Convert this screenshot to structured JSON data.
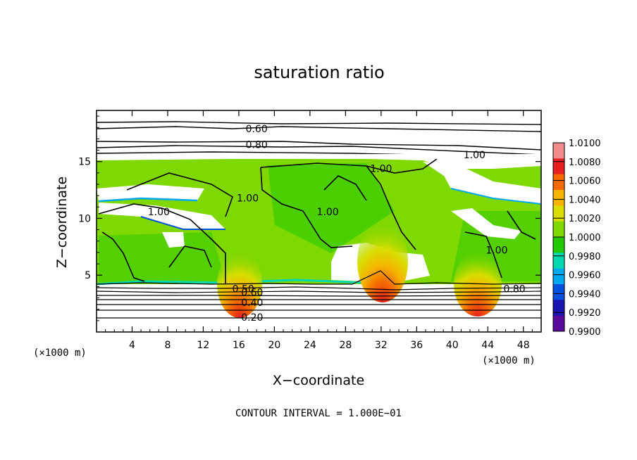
{
  "chart_data": {
    "type": "heatmap",
    "title": "saturation ratio",
    "xlabel": "X−coordinate",
    "ylabel": "Z−coordinate",
    "x_unit_left": "(×1000 m)",
    "x_unit_right": "(×1000 m)",
    "xlim": [
      0,
      50
    ],
    "ylim": [
      0,
      19.5
    ],
    "x_ticks": [
      4,
      8,
      12,
      16,
      20,
      24,
      28,
      32,
      36,
      40,
      44,
      48
    ],
    "y_ticks": [
      5,
      10,
      15
    ],
    "footnote": "CONTOUR INTERVAL = 1.000E−01",
    "colorbar": {
      "labels": [
        "1.0100",
        "1.0080",
        "1.0060",
        "1.0040",
        "1.0020",
        "1.0000",
        "0.9980",
        "0.9960",
        "0.9940",
        "0.9920",
        "0.9900"
      ],
      "colors": [
        "#f08c8c",
        "#e62020",
        "#f56a00",
        "#f5b400",
        "#d9dd00",
        "#7fd800",
        "#22c800",
        "#00d8b0",
        "#00a8f0",
        "#0050e0",
        "#1a14b0",
        "#5a0a9a"
      ]
    },
    "contour_labels": [
      {
        "text": "0.60",
        "x": 18.0,
        "z": 17.9
      },
      {
        "text": "0.80",
        "x": 18.0,
        "z": 16.5
      },
      {
        "text": "1.00",
        "x": 42.5,
        "z": 15.6
      },
      {
        "text": "1.00",
        "x": 32.0,
        "z": 14.4
      },
      {
        "text": "1.00",
        "x": 17.0,
        "z": 11.8
      },
      {
        "text": "1.00",
        "x": 26.0,
        "z": 10.6
      },
      {
        "text": "1.00",
        "x": 7.0,
        "z": 10.6
      },
      {
        "text": "1.00",
        "x": 45.0,
        "z": 7.2
      },
      {
        "text": "0.80",
        "x": 47.0,
        "z": 3.8
      },
      {
        "text": "0.50",
        "x": 16.5,
        "z": 3.8
      },
      {
        "text": "0.60",
        "x": 17.5,
        "z": 3.5
      },
      {
        "text": "0.40",
        "x": 17.5,
        "z": 2.6
      },
      {
        "text": "0.20",
        "x": 17.5,
        "z": 1.3
      }
    ],
    "hotspots": [
      {
        "x": 16.0,
        "z": 4.6
      },
      {
        "x": 31.5,
        "z": 7.3
      },
      {
        "x": 43.0,
        "z": 4.6
      }
    ]
  }
}
